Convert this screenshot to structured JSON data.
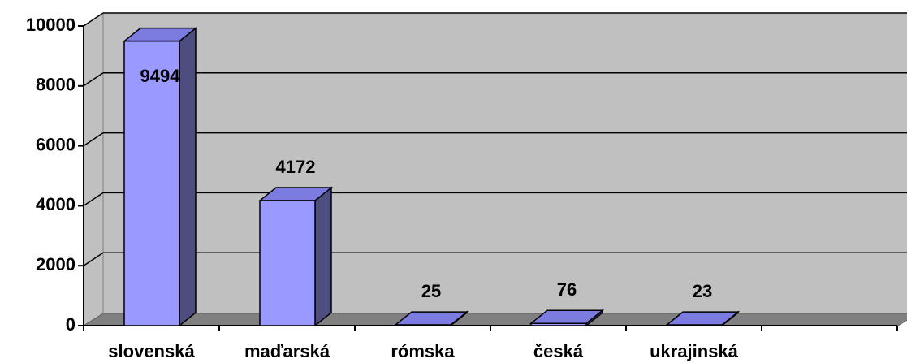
{
  "chart_data": {
    "type": "bar3d",
    "categories": [
      "slovenská",
      "maďarská",
      "rómska",
      "česká",
      "ukrajinská",
      null
    ],
    "values": [
      9494,
      4172,
      25,
      76,
      23,
      null
    ],
    "color": "#9999ff",
    "ylim": [
      0,
      10000
    ],
    "yticks": [
      0,
      2000,
      4000,
      6000,
      8000,
      10000
    ],
    "grid": true
  }
}
